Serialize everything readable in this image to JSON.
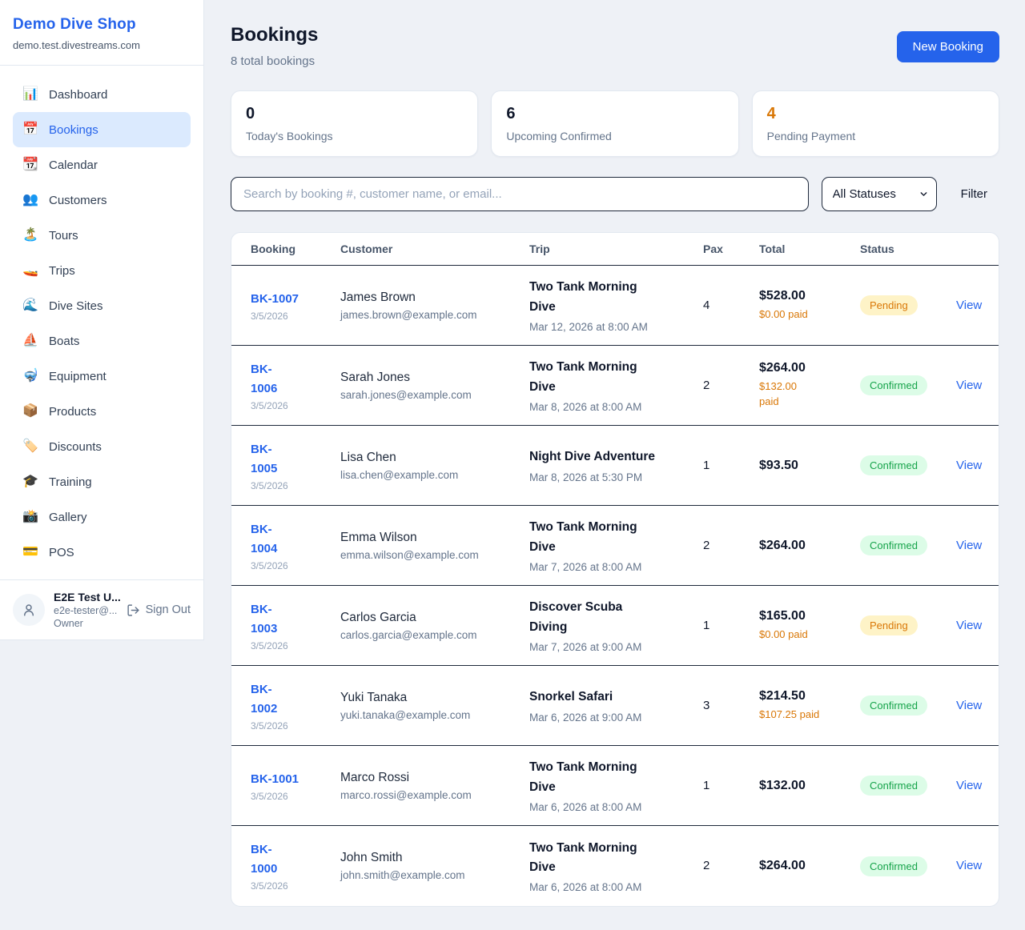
{
  "colors": {
    "accent": "#2563eb",
    "orange": "#d97706",
    "green": "#16a34a",
    "pending_badge_bg": "#fef3c7",
    "confirmed_badge_bg": "#dcfce7"
  },
  "sidebar": {
    "brand": "Demo Dive Shop",
    "domain": "demo.test.divestreams.com",
    "items": [
      {
        "icon": "📊",
        "icon_name": "bar-chart-icon",
        "label": "Dashboard",
        "active": false
      },
      {
        "icon": "📅",
        "icon_name": "calendar-date-icon",
        "label": "Bookings",
        "active": true
      },
      {
        "icon": "📆",
        "icon_name": "tear-off-calendar-icon",
        "label": "Calendar",
        "active": false
      },
      {
        "icon": "👥",
        "icon_name": "people-icon",
        "label": "Customers",
        "active": false
      },
      {
        "icon": "🏝️",
        "icon_name": "island-icon",
        "label": "Tours",
        "active": false
      },
      {
        "icon": "🚤",
        "icon_name": "speedboat-icon",
        "label": "Trips",
        "active": false
      },
      {
        "icon": "🌊",
        "icon_name": "wave-icon",
        "label": "Dive Sites",
        "active": false
      },
      {
        "icon": "⛵",
        "icon_name": "sailboat-icon",
        "label": "Boats",
        "active": false
      },
      {
        "icon": "🤿",
        "icon_name": "diving-mask-icon",
        "label": "Equipment",
        "active": false
      },
      {
        "icon": "📦",
        "icon_name": "package-icon",
        "label": "Products",
        "active": false
      },
      {
        "icon": "🏷️",
        "icon_name": "label-tag-icon",
        "label": "Discounts",
        "active": false
      },
      {
        "icon": "🎓",
        "icon_name": "graduation-cap-icon",
        "label": "Training",
        "active": false
      },
      {
        "icon": "📸",
        "icon_name": "camera-flash-icon",
        "label": "Gallery",
        "active": false
      },
      {
        "icon": "💳",
        "icon_name": "credit-card-icon",
        "label": "POS",
        "active": false
      }
    ],
    "user": {
      "name": "E2E Test U...",
      "email": "e2e-tester@...",
      "role": "Owner",
      "sign_out_label": "Sign Out"
    }
  },
  "header": {
    "title": "Bookings",
    "subtitle": "8 total bookings",
    "new_booking_label": "New Booking"
  },
  "stats": [
    {
      "value": "0",
      "label": "Today's Bookings",
      "highlight": false
    },
    {
      "value": "6",
      "label": "Upcoming Confirmed",
      "highlight": false
    },
    {
      "value": "4",
      "label": "Pending Payment",
      "highlight": true
    }
  ],
  "filters": {
    "search_placeholder": "Search by booking #, customer name, or email...",
    "status_selected": "All Statuses",
    "filter_label": "Filter"
  },
  "table": {
    "columns": [
      "Booking",
      "Customer",
      "Trip",
      "Pax",
      "Total",
      "Status"
    ],
    "rows": [
      {
        "booking_id": "BK-1007",
        "booking_date": "3/5/2026",
        "customer_name": "James Brown",
        "customer_email": "james.brown@example.com",
        "trip_name": "Two Tank Morning\nDive",
        "trip_datetime": "Mar 12, 2026 at 8:00 AM",
        "pax": "4",
        "total": "$528.00",
        "paid": "$0.00 paid",
        "status": "Pending",
        "status_type": "pending",
        "action": "View"
      },
      {
        "booking_id": "BK-\n1006",
        "booking_date": "3/5/2026",
        "customer_name": "Sarah Jones",
        "customer_email": "sarah.jones@example.com",
        "trip_name": "Two Tank Morning\nDive",
        "trip_datetime": "Mar 8, 2026 at 8:00 AM",
        "pax": "2",
        "total": "$264.00",
        "paid": "$132.00\npaid",
        "status": "Confirmed",
        "status_type": "confirmed",
        "action": "View"
      },
      {
        "booking_id": "BK-\n1005",
        "booking_date": "3/5/2026",
        "customer_name": "Lisa Chen",
        "customer_email": "lisa.chen@example.com",
        "trip_name": "Night Dive Adventure",
        "trip_datetime": "Mar 8, 2026 at 5:30 PM",
        "pax": "1",
        "total": "$93.50",
        "paid": "",
        "status": "Confirmed",
        "status_type": "confirmed",
        "action": "View"
      },
      {
        "booking_id": "BK-\n1004",
        "booking_date": "3/5/2026",
        "customer_name": "Emma Wilson",
        "customer_email": "emma.wilson@example.com",
        "trip_name": "Two Tank Morning\nDive",
        "trip_datetime": "Mar 7, 2026 at 8:00 AM",
        "pax": "2",
        "total": "$264.00",
        "paid": "",
        "status": "Confirmed",
        "status_type": "confirmed",
        "action": "View"
      },
      {
        "booking_id": "BK-\n1003",
        "booking_date": "3/5/2026",
        "customer_name": "Carlos Garcia",
        "customer_email": "carlos.garcia@example.com",
        "trip_name": "Discover Scuba\nDiving",
        "trip_datetime": "Mar 7, 2026 at 9:00 AM",
        "pax": "1",
        "total": "$165.00",
        "paid": "$0.00 paid",
        "status": "Pending",
        "status_type": "pending",
        "action": "View"
      },
      {
        "booking_id": "BK-\n1002",
        "booking_date": "3/5/2026",
        "customer_name": "Yuki Tanaka",
        "customer_email": "yuki.tanaka@example.com",
        "trip_name": "Snorkel Safari",
        "trip_datetime": "Mar 6, 2026 at 9:00 AM",
        "pax": "3",
        "total": "$214.50",
        "paid": "$107.25 paid",
        "status": "Confirmed",
        "status_type": "confirmed",
        "action": "View"
      },
      {
        "booking_id": "BK-1001",
        "booking_date": "3/5/2026",
        "customer_name": "Marco Rossi",
        "customer_email": "marco.rossi@example.com",
        "trip_name": "Two Tank Morning\nDive",
        "trip_datetime": "Mar 6, 2026 at 8:00 AM",
        "pax": "1",
        "total": "$132.00",
        "paid": "",
        "status": "Confirmed",
        "status_type": "confirmed",
        "action": "View"
      },
      {
        "booking_id": "BK-\n1000",
        "booking_date": "3/5/2026",
        "customer_name": "John Smith",
        "customer_email": "john.smith@example.com",
        "trip_name": "Two Tank Morning\nDive",
        "trip_datetime": "Mar 6, 2026 at 8:00 AM",
        "pax": "2",
        "total": "$264.00",
        "paid": "",
        "status": "Confirmed",
        "status_type": "confirmed",
        "action": "View"
      }
    ]
  }
}
